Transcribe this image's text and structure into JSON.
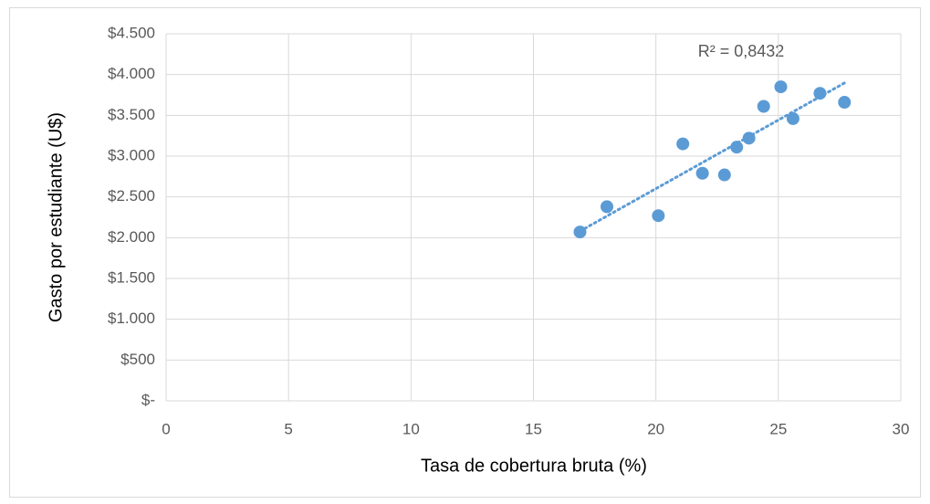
{
  "chart_data": {
    "type": "scatter",
    "xlabel": "Tasa de cobertura bruta (%)",
    "ylabel": "Gasto por estudiante (U$)",
    "annotation": "R² = 0,8432",
    "x": [
      16.9,
      18.0,
      20.1,
      21.1,
      21.9,
      22.8,
      23.3,
      23.8,
      24.4,
      25.1,
      25.6,
      26.7,
      27.7
    ],
    "values": [
      2070,
      2380,
      2270,
      3150,
      2790,
      2770,
      3110,
      3220,
      3610,
      3850,
      3460,
      3770,
      3660
    ],
    "color": "#5b9bd5",
    "trendline": "linear",
    "xlim": [
      0,
      30
    ],
    "xticks": [
      0,
      5,
      10,
      15,
      20,
      25,
      30
    ],
    "ylim": [
      0,
      4500
    ],
    "yticks": [
      {
        "value": 0,
        "label": "$-"
      },
      {
        "value": 500,
        "label": "$500"
      },
      {
        "value": 1000,
        "label": "$1.000"
      },
      {
        "value": 1500,
        "label": "$1.500"
      },
      {
        "value": 2000,
        "label": "$2.000"
      },
      {
        "value": 2500,
        "label": "$2.500"
      },
      {
        "value": 3000,
        "label": "$3.000"
      },
      {
        "value": 3500,
        "label": "$3.500"
      },
      {
        "value": 4000,
        "label": "$4.000"
      },
      {
        "value": 4500,
        "label": "$4.500"
      }
    ],
    "grid": true
  }
}
